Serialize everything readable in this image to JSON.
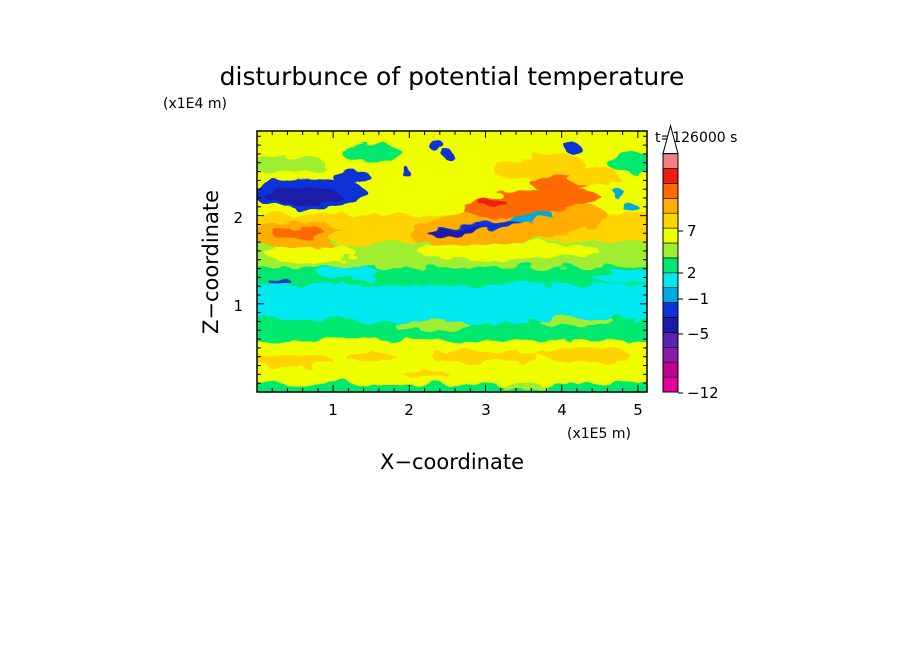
{
  "chart_data": {
    "type": "heatmap",
    "title": "disturbunce of potential temperature",
    "time_label": "t=126000 s",
    "xlabel": "X−coordinate",
    "ylabel": "Z−coordinate",
    "x_unit": "(x1E5 m)",
    "y_unit": "(x1E4 m)",
    "xlim": [
      0,
      5.12
    ],
    "ylim": [
      0,
      2.96
    ],
    "x_ticks": [
      "1",
      "2",
      "3",
      "4",
      "5"
    ],
    "y_ticks": [
      "1",
      "2"
    ],
    "colorbar": {
      "levels": [
        -12,
        -10,
        -8,
        -6,
        -5,
        -4,
        -3,
        -2,
        -1,
        0,
        1,
        2,
        3,
        5,
        7,
        9,
        11
      ],
      "colors": [
        "#e6009a",
        "#c00090",
        "#8a1ca8",
        "#5a22b2",
        "#1a1aa8",
        "#1030d8",
        "#00a8e0",
        "#00e8f0",
        "#00e870",
        "#a0ee30",
        "#f0ff00",
        "#ffd400",
        "#ffae00",
        "#ff6a00",
        "#f01c10",
        "#f08080",
        "#f8c0c0"
      ],
      "labels": [
        "7",
        "2",
        "−1",
        "−5",
        "−12"
      ],
      "grid": false
    },
    "bands": [
      {
        "z_range": [
          0.0,
          0.12
        ],
        "level": "0 to 1",
        "note": "patchy green/yellow near surface"
      },
      {
        "z_range": [
          0.12,
          0.62
        ],
        "level": "1 to 3",
        "note": "yellow with orange patches"
      },
      {
        "z_range": [
          0.62,
          0.86
        ],
        "level": "0 to 1"
      },
      {
        "z_range": [
          0.86,
          1.25
        ],
        "level": "-2 to -1"
      },
      {
        "z_range": [
          1.25,
          1.45
        ],
        "level": "0 to 1"
      },
      {
        "z_range": [
          1.45,
          1.75
        ],
        "level": "1 to 2"
      },
      {
        "z_range": [
          1.75,
          2.05
        ],
        "level": "2 to 5",
        "note": "orange/red maxima near x=0.5 and x=3.2"
      },
      {
        "z_range": [
          2.05,
          2.45
        ],
        "level": "-5 to -3",
        "note": "blue minimum at x<1.5; warm (up to 7) at x=2.5-4.2"
      },
      {
        "z_range": [
          2.45,
          2.96
        ],
        "level": "0 to 2"
      }
    ]
  }
}
